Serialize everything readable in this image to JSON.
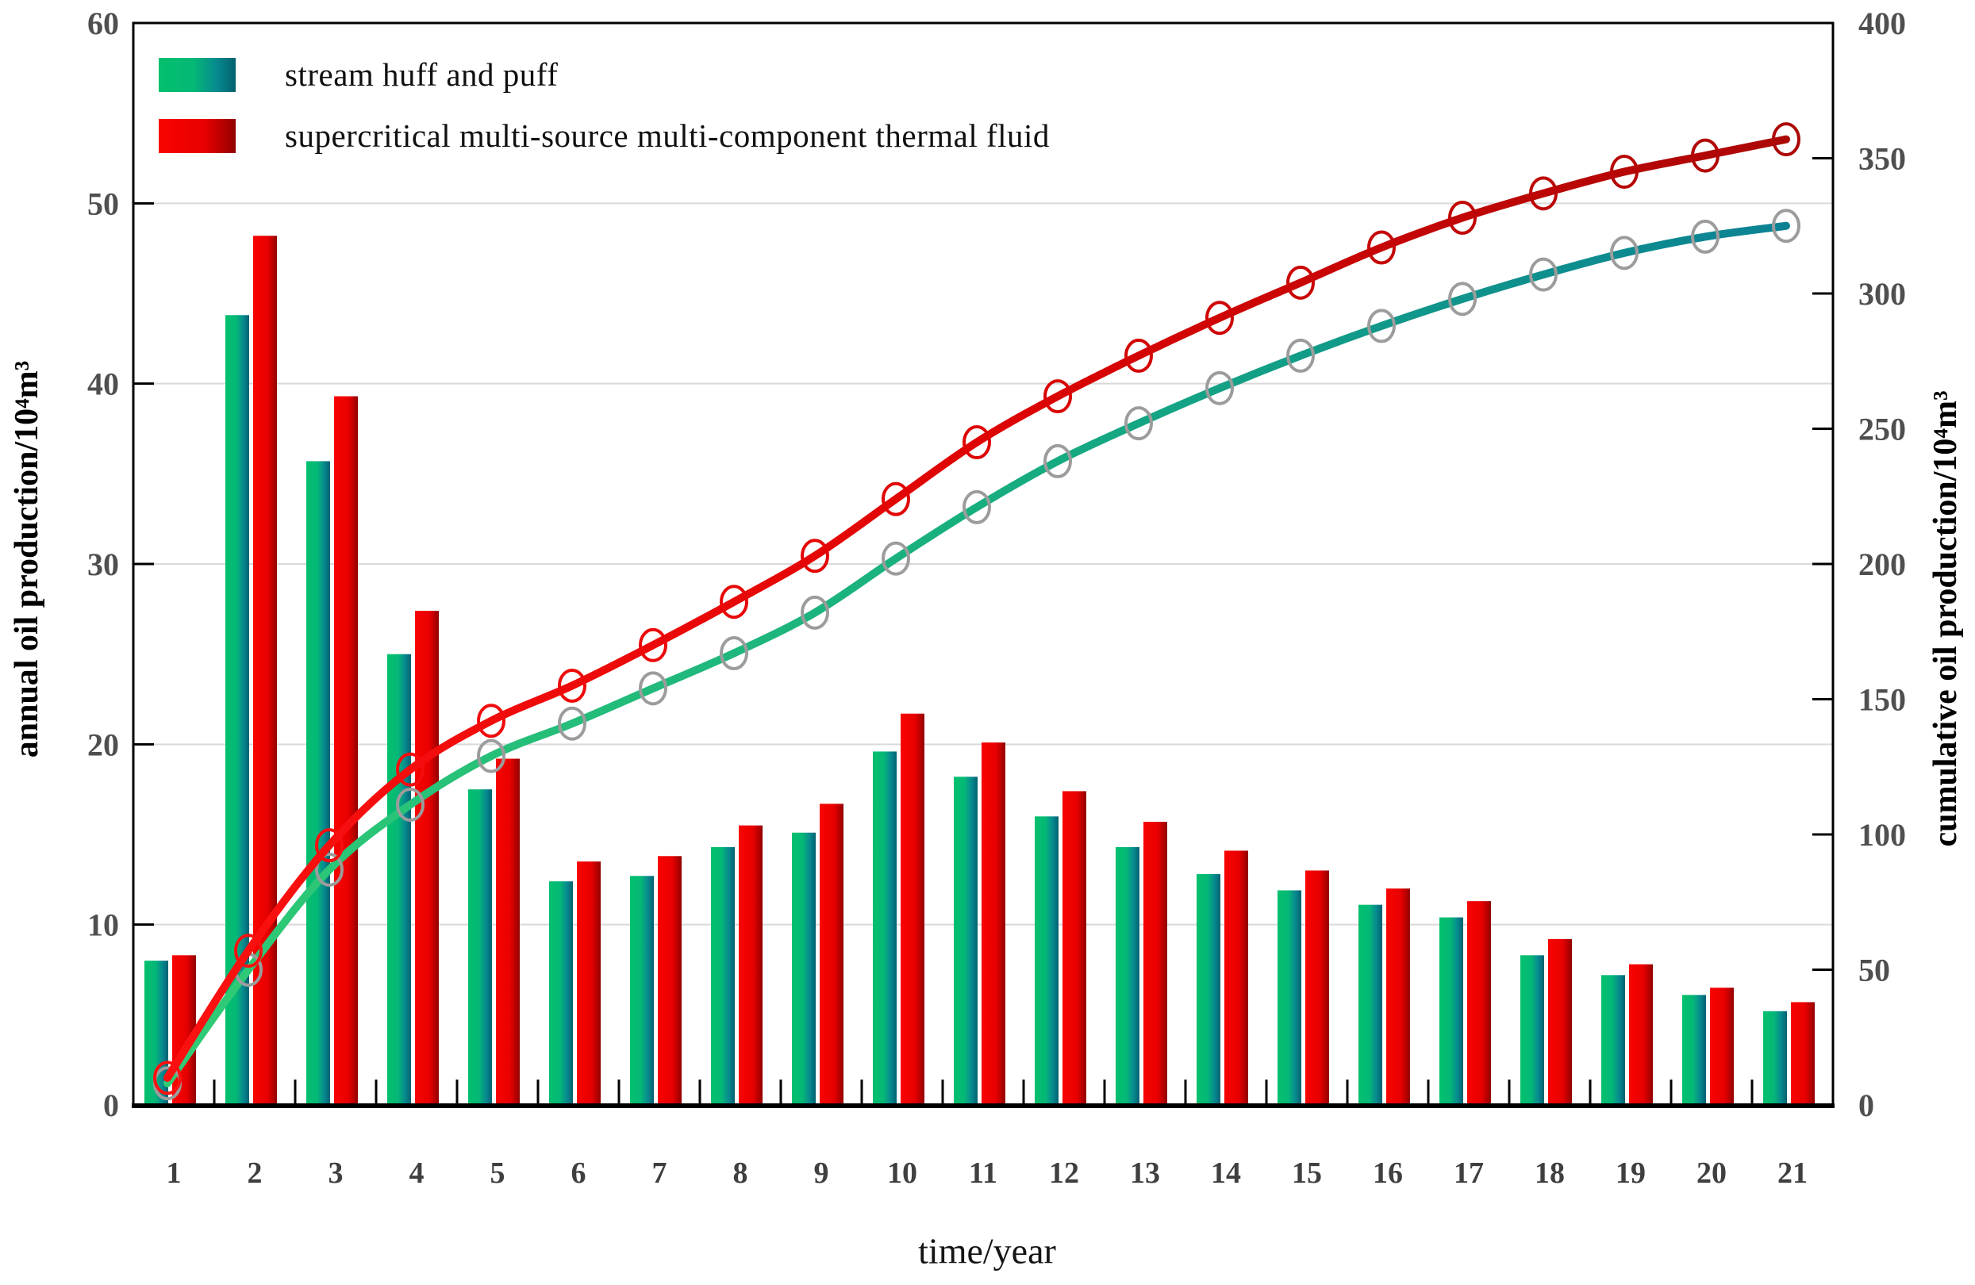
{
  "axes_note": "combo chart: grouped bars on left axis, cumulative smooth lines with open circle markers on right axis",
  "legend": {
    "items": [
      {
        "label": "stream huff and puff",
        "swatch": "green-teal-gradient"
      },
      {
        "label": "supercritical multi-source multi-component thermal fluid",
        "swatch": "red-gradient"
      }
    ]
  },
  "chart_data": {
    "type": "bar",
    "subtype": "grouped-bars-plus-cumulative-lines",
    "x": [
      1,
      2,
      3,
      4,
      5,
      6,
      7,
      8,
      9,
      10,
      11,
      12,
      13,
      14,
      15,
      16,
      17,
      18,
      19,
      20,
      21
    ],
    "xlabel": "time/year",
    "left_axis": {
      "label": "annual oil production/10⁴m³",
      "min": 0,
      "max": 60,
      "step": 10
    },
    "right_axis": {
      "label": "cumulative oil production/10⁴m³",
      "min": 0,
      "max": 400,
      "step": 50
    },
    "grid": "horizontal-light-gray",
    "legend_position": "top-left-inside",
    "series": [
      {
        "id": "stream-annual",
        "name": "stream huff and puff",
        "type": "bar",
        "axis": "left",
        "values": [
          8.0,
          43.8,
          35.7,
          25.0,
          17.5,
          12.4,
          12.7,
          14.3,
          15.1,
          19.6,
          18.2,
          16.0,
          14.3,
          12.8,
          11.9,
          11.1,
          10.4,
          8.3,
          7.2,
          6.1,
          5.2
        ]
      },
      {
        "id": "supercritical-annual",
        "name": "supercritical multi-source multi-component thermal fluid",
        "type": "bar",
        "axis": "left",
        "values": [
          8.3,
          48.2,
          39.3,
          27.4,
          19.2,
          13.5,
          13.8,
          15.5,
          16.7,
          21.7,
          20.1,
          17.4,
          15.7,
          14.1,
          13.0,
          12.0,
          11.3,
          9.2,
          7.8,
          6.5,
          5.7
        ]
      },
      {
        "id": "stream-cumulative",
        "name": "stream huff and puff",
        "type": "line",
        "axis": "right",
        "marker": "open-circle-gray",
        "values": [
          8,
          50,
          87,
          111,
          129,
          141,
          154,
          167,
          182,
          202,
          221,
          238,
          252,
          265,
          277,
          288,
          298,
          307,
          315,
          321,
          325
        ]
      },
      {
        "id": "supercritical-cumulative",
        "name": "supercritical multi-source multi-component thermal fluid",
        "type": "line",
        "axis": "right",
        "marker": "open-circle-red",
        "values": [
          10,
          57,
          96,
          124,
          142,
          155,
          170,
          186,
          203,
          224,
          245,
          262,
          277,
          291,
          304,
          317,
          328,
          337,
          345,
          351,
          357
        ]
      }
    ],
    "colors": {
      "bar_green_gradient": [
        "#03C06D",
        "#04B876",
        "#078A90",
        "#02616F"
      ],
      "bar_red_gradient": [
        "#F80400",
        "#E80000",
        "#B40000",
        "#8F0000"
      ],
      "line_green_gradient": [
        "#31CD74",
        "#17AE7F",
        "#0A7F95"
      ],
      "line_red_gradient": [
        "#FF1111",
        "#DE0404",
        "#A90707"
      ],
      "marker_gray": "#9C9C9C",
      "grid": "#D9D9D9",
      "axis_frame": "#000000",
      "tick_label": "#4F4F4F",
      "year_label": "#3F3F3F"
    }
  }
}
